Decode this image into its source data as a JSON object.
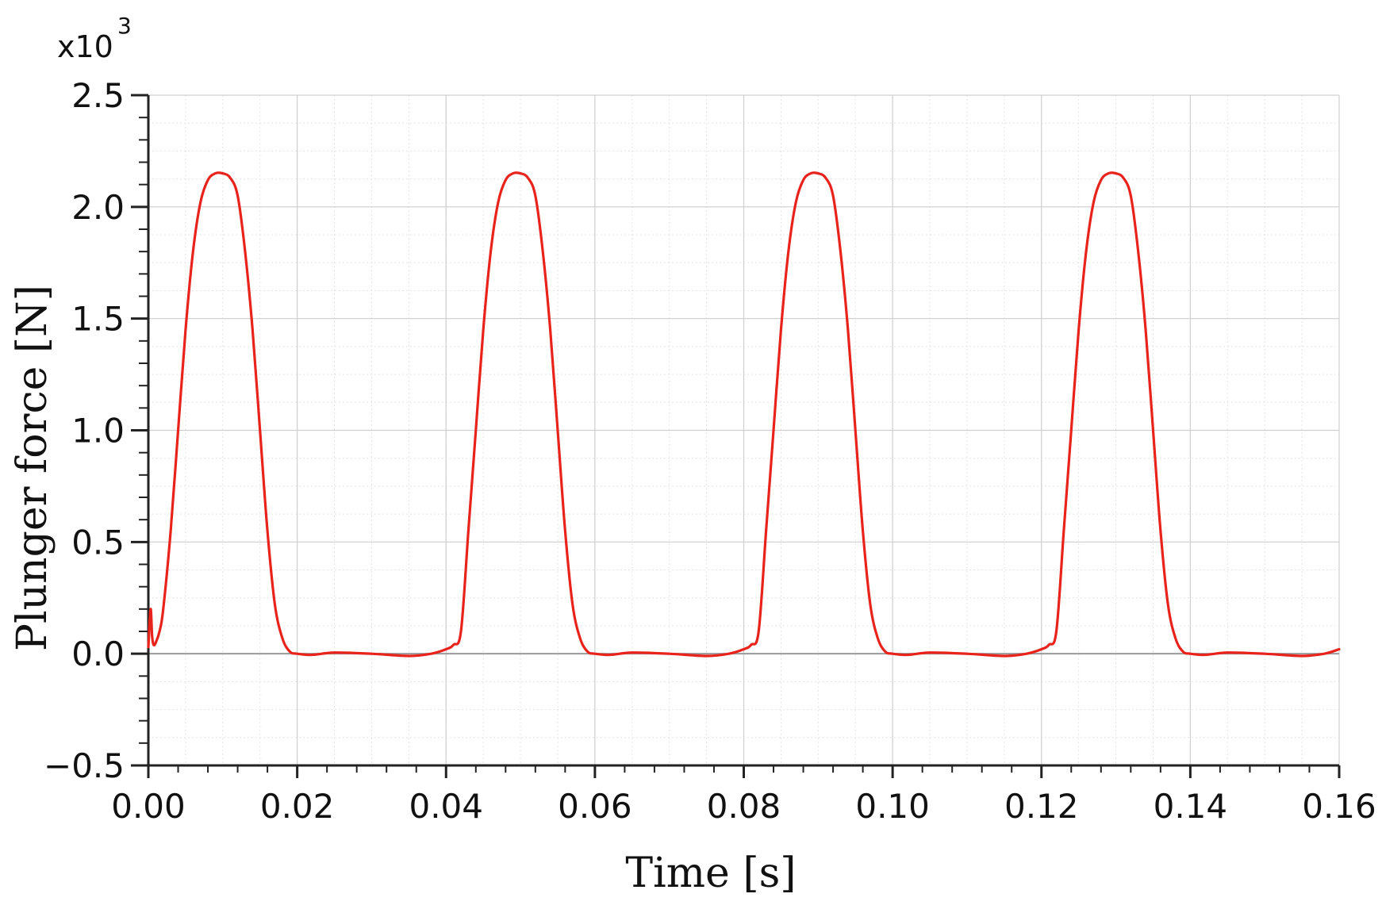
{
  "chart_data": {
    "type": "line",
    "xlabel": "Time [s]",
    "ylabel": "Plunger force [N]",
    "y_multiplier_base": "x10",
    "y_multiplier_exponent": "3",
    "xlim": [
      0.0,
      0.16
    ],
    "ylim": [
      -0.5,
      2.5
    ],
    "x_ticks": [
      "0.00",
      "0.02",
      "0.04",
      "0.06",
      "0.08",
      "0.10",
      "0.12",
      "0.14",
      "0.16"
    ],
    "y_ticks": [
      "−0.5",
      "0.0",
      "0.5",
      "1.0",
      "1.5",
      "2.0",
      "2.5"
    ],
    "grid": true,
    "line_color": "#e8231c",
    "series": [
      {
        "x": [
          0.0,
          0.0003,
          0.0005,
          0.0007,
          0.001,
          0.0015,
          0.002,
          0.003,
          0.004,
          0.005,
          0.006,
          0.007,
          0.008,
          0.009,
          0.01,
          0.011,
          0.012,
          0.013,
          0.014,
          0.015,
          0.016,
          0.017,
          0.018,
          0.019,
          0.02,
          0.022,
          0.025,
          0.03,
          0.035,
          0.038,
          0.04,
          0.041,
          0.042,
          0.043,
          0.044,
          0.045,
          0.046,
          0.047,
          0.048,
          0.049,
          0.05,
          0.051,
          0.052,
          0.053,
          0.054,
          0.055,
          0.056,
          0.057,
          0.058,
          0.059,
          0.06,
          0.062,
          0.065,
          0.07,
          0.075,
          0.078,
          0.08,
          0.081,
          0.082,
          0.083,
          0.084,
          0.085,
          0.086,
          0.087,
          0.088,
          0.089,
          0.09,
          0.091,
          0.092,
          0.093,
          0.094,
          0.095,
          0.096,
          0.097,
          0.098,
          0.099,
          0.1,
          0.102,
          0.105,
          0.11,
          0.115,
          0.118,
          0.12,
          0.121,
          0.122,
          0.123,
          0.124,
          0.125,
          0.126,
          0.127,
          0.128,
          0.129,
          0.13,
          0.131,
          0.132,
          0.133,
          0.134,
          0.135,
          0.136,
          0.137,
          0.138,
          0.139,
          0.14,
          0.142,
          0.145,
          0.15,
          0.155,
          0.158,
          0.16
        ],
        "y": [
          0.03,
          0.2,
          0.08,
          0.04,
          0.05,
          0.1,
          0.2,
          0.55,
          1.0,
          1.45,
          1.8,
          2.02,
          2.12,
          2.15,
          2.15,
          2.13,
          2.05,
          1.8,
          1.45,
          1.0,
          0.55,
          0.22,
          0.07,
          0.01,
          0.0,
          -0.005,
          0.005,
          0.0,
          -0.01,
          0.0,
          0.02,
          0.04,
          0.1,
          0.55,
          1.0,
          1.45,
          1.8,
          2.02,
          2.12,
          2.15,
          2.15,
          2.13,
          2.05,
          1.8,
          1.45,
          1.0,
          0.55,
          0.22,
          0.07,
          0.01,
          0.0,
          -0.005,
          0.005,
          0.0,
          -0.01,
          0.0,
          0.02,
          0.04,
          0.1,
          0.55,
          1.0,
          1.45,
          1.8,
          2.02,
          2.12,
          2.15,
          2.15,
          2.13,
          2.05,
          1.8,
          1.45,
          1.0,
          0.55,
          0.22,
          0.07,
          0.01,
          0.0,
          -0.005,
          0.005,
          0.0,
          -0.01,
          0.0,
          0.02,
          0.04,
          0.1,
          0.55,
          1.0,
          1.45,
          1.8,
          2.02,
          2.12,
          2.15,
          2.15,
          2.13,
          2.05,
          1.8,
          1.45,
          1.0,
          0.55,
          0.22,
          0.07,
          0.01,
          0.0,
          -0.005,
          0.005,
          0.0,
          -0.01,
          0.0,
          0.02
        ]
      }
    ]
  }
}
